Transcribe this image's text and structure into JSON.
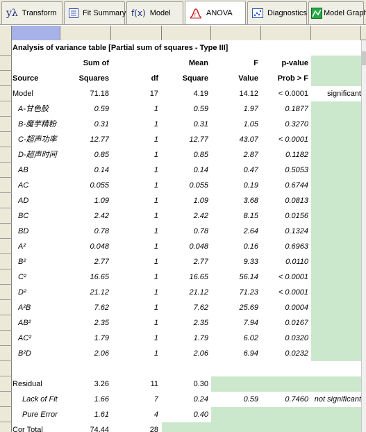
{
  "tabs": [
    {
      "label": "Transform",
      "icon": "y-lambda-icon",
      "icon_text": "yλ"
    },
    {
      "label": "Fit Summary",
      "icon": "list-icon"
    },
    {
      "label": "Model",
      "icon": "fx-icon",
      "icon_text": "f(x)"
    },
    {
      "label": "ANOVA",
      "icon": "distribution-curve-icon",
      "active": true
    },
    {
      "label": "Diagnostics",
      "icon": "scatter-icon"
    },
    {
      "label": "Model Graphs",
      "icon": "model-graph-icon"
    }
  ],
  "table": {
    "title": "Analysis of variance table [Partial sum of squares - Type III]",
    "header1": {
      "sum": "Sum of",
      "mean": "Mean",
      "f": "F",
      "p": "p-value"
    },
    "header2": {
      "source": "Source",
      "sum": "Squares",
      "df": "df",
      "mean": "Square",
      "f": "Value",
      "p": "Prob > F"
    },
    "rows": [
      {
        "source": "Model",
        "ss": "71.18",
        "df": "17",
        "ms": "4.19",
        "f": "14.12",
        "p": "< 0.0001",
        "note": "significant"
      },
      {
        "source": "A-甘色胶",
        "ss": "0.59",
        "df": "1",
        "ms": "0.59",
        "f": "1.97",
        "p": "0.1877"
      },
      {
        "source": "B-魔芋精粉",
        "ss": "0.31",
        "df": "1",
        "ms": "0.31",
        "f": "1.05",
        "p": "0.3270"
      },
      {
        "source": "C-超声功率",
        "ss": "12.77",
        "df": "1",
        "ms": "12.77",
        "f": "43.07",
        "p": "< 0.0001"
      },
      {
        "source": "D-超声时间",
        "ss": "0.85",
        "df": "1",
        "ms": "0.85",
        "f": "2.87",
        "p": "0.1182"
      },
      {
        "source": "AB",
        "ss": "0.14",
        "df": "1",
        "ms": "0.14",
        "f": "0.47",
        "p": "0.5053"
      },
      {
        "source": "AC",
        "ss": "0.055",
        "df": "1",
        "ms": "0.055",
        "f": "0.19",
        "p": "0.6744"
      },
      {
        "source": "AD",
        "ss": "1.09",
        "df": "1",
        "ms": "1.09",
        "f": "3.68",
        "p": "0.0813"
      },
      {
        "source": "BC",
        "ss": "2.42",
        "df": "1",
        "ms": "2.42",
        "f": "8.15",
        "p": "0.0156"
      },
      {
        "source": "BD",
        "ss": "0.78",
        "df": "1",
        "ms": "0.78",
        "f": "2.64",
        "p": "0.1324"
      },
      {
        "source": "A²",
        "ss": "0.048",
        "df": "1",
        "ms": "0.048",
        "f": "0.16",
        "p": "0.6963"
      },
      {
        "source": "B²",
        "ss": "2.77",
        "df": "1",
        "ms": "2.77",
        "f": "9.33",
        "p": "0.0110"
      },
      {
        "source": "C²",
        "ss": "16.65",
        "df": "1",
        "ms": "16.65",
        "f": "56.14",
        "p": "< 0.0001"
      },
      {
        "source": "D²",
        "ss": "21.12",
        "df": "1",
        "ms": "21.12",
        "f": "71.23",
        "p": "< 0.0001"
      },
      {
        "source": "A²B",
        "ss": "7.62",
        "df": "1",
        "ms": "7.62",
        "f": "25.69",
        "p": "0.0004"
      },
      {
        "source": "AB²",
        "ss": "2.35",
        "df": "1",
        "ms": "2.35",
        "f": "7.94",
        "p": "0.0167"
      },
      {
        "source": "AC²",
        "ss": "1.79",
        "df": "1",
        "ms": "1.79",
        "f": "6.02",
        "p": "0.0320"
      },
      {
        "source": "B²D",
        "ss": "2.06",
        "df": "1",
        "ms": "2.06",
        "f": "6.94",
        "p": "0.0232"
      }
    ],
    "residual": {
      "source": "Residual",
      "ss": "3.26",
      "df": "11",
      "ms": "0.30"
    },
    "lack_of_fit": {
      "source": "Lack of Fit",
      "ss": "1.66",
      "df": "7",
      "ms": "0.24",
      "f": "0.59",
      "p": "0.7460",
      "note": "not significant"
    },
    "pure_error": {
      "source": "Pure Error",
      "ss": "1.61",
      "df": "4",
      "ms": "0.40"
    },
    "cor_total": {
      "source": "Cor Total",
      "ss": "74.44",
      "df": "28"
    }
  },
  "colors": {
    "highlight": "#cce8cc",
    "selected_header": "#a6b2e8",
    "chrome": "#ece9d8"
  }
}
